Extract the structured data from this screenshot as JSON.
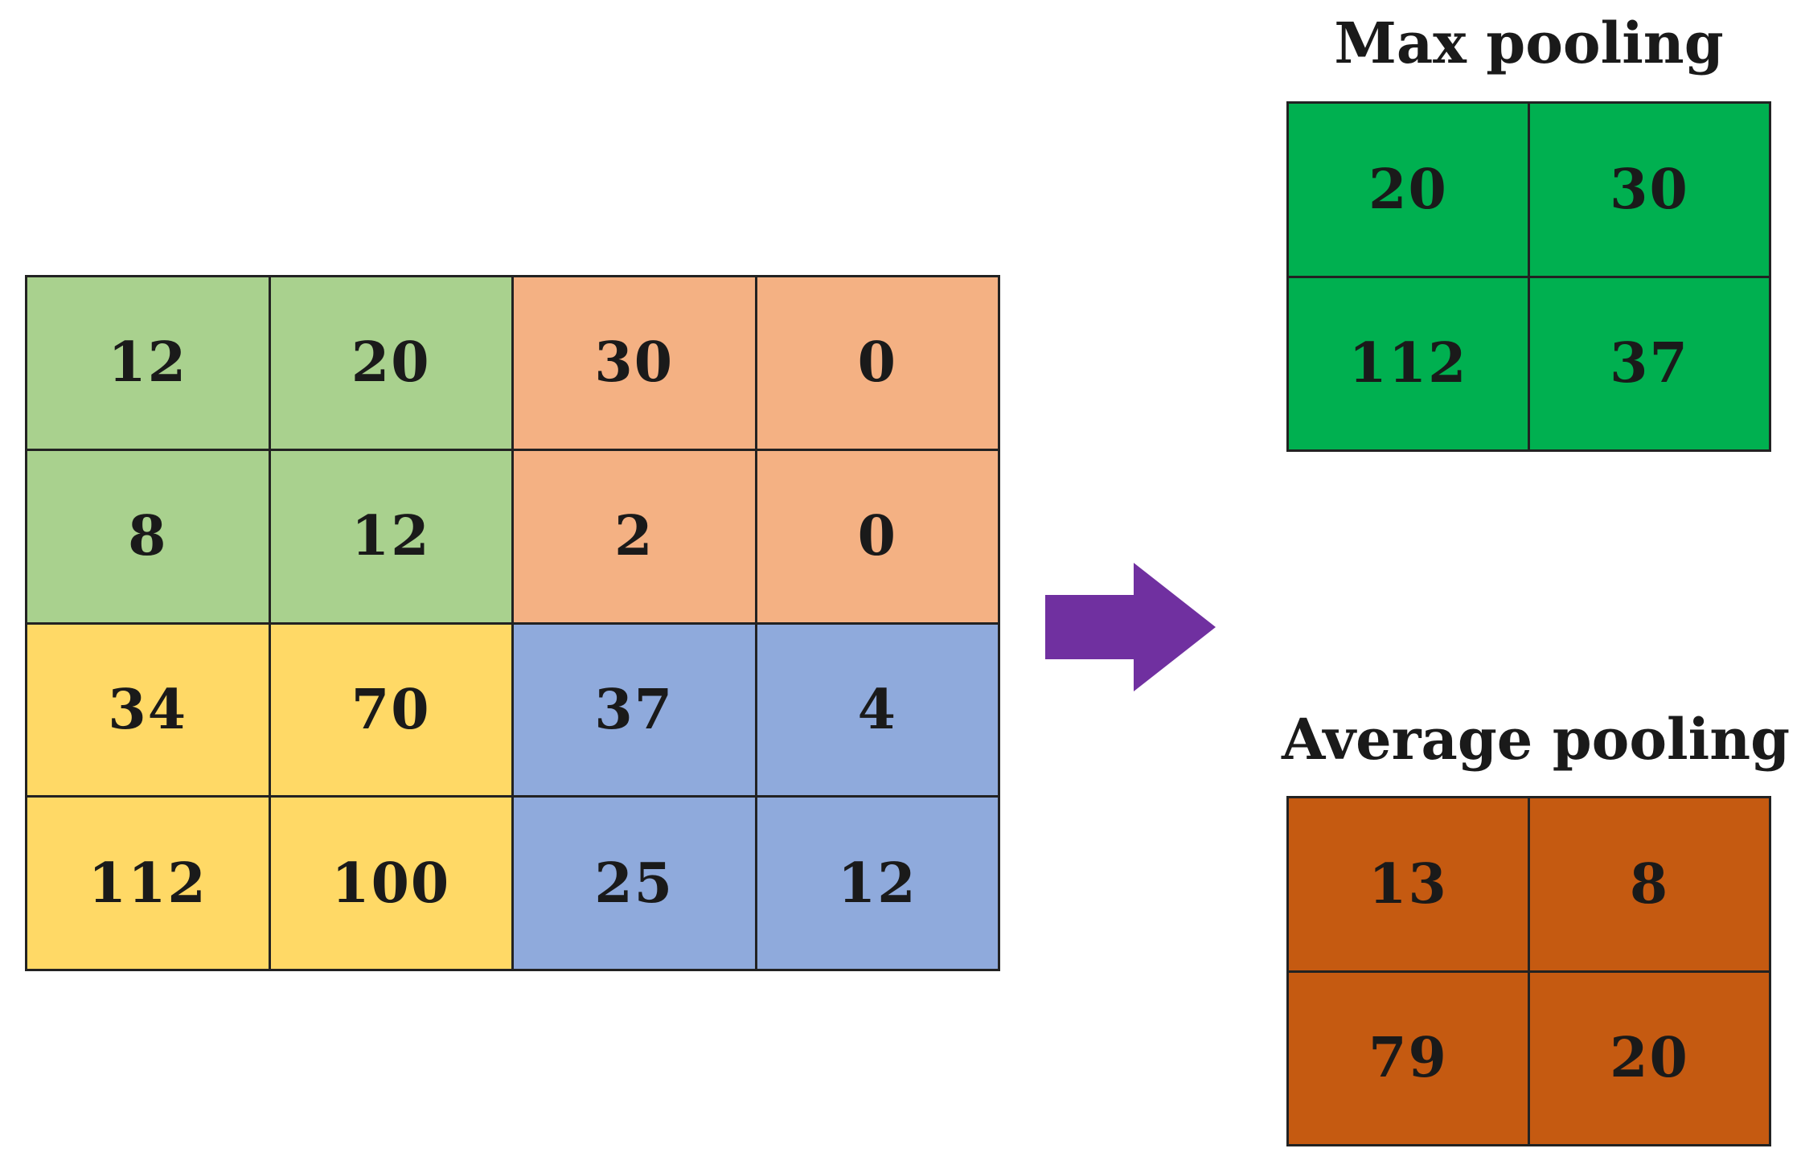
{
  "input_matrix": {
    "rows": [
      [
        "12",
        "20",
        "30",
        "0"
      ],
      [
        "8",
        "12",
        "2",
        "0"
      ],
      [
        "34",
        "70",
        "37",
        "4"
      ],
      [
        "112",
        "100",
        "25",
        "12"
      ]
    ],
    "quadrant_colors": {
      "top_left": "#a9d18e",
      "top_right": "#f4b183",
      "bottom_left": "#ffd966",
      "bottom_right": "#8faadc"
    }
  },
  "max_pooling": {
    "title": "Max pooling",
    "rows": [
      [
        "20",
        "30"
      ],
      [
        "112",
        "37"
      ]
    ],
    "color": "#00b050"
  },
  "average_pooling": {
    "title": "Average pooling",
    "rows": [
      [
        "13",
        "8"
      ],
      [
        "79",
        "20"
      ]
    ],
    "color": "#c55a11"
  },
  "arrow": {
    "icon": "right-arrow-icon",
    "color": "#7030a0"
  }
}
